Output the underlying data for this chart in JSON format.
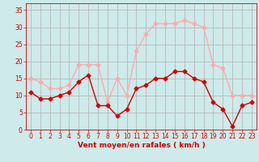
{
  "x": [
    0,
    1,
    2,
    3,
    4,
    5,
    6,
    7,
    8,
    9,
    10,
    11,
    12,
    13,
    14,
    15,
    16,
    17,
    18,
    19,
    20,
    21,
    22,
    23
  ],
  "wind_avg": [
    11,
    9,
    9,
    10,
    11,
    14,
    16,
    7,
    7,
    4,
    6,
    12,
    13,
    15,
    15,
    17,
    17,
    15,
    14,
    8,
    6,
    1,
    7,
    8
  ],
  "wind_gust": [
    15,
    14,
    12,
    12,
    13,
    19,
    19,
    19,
    8,
    15,
    10,
    23,
    28,
    31,
    31,
    31,
    32,
    31,
    30,
    19,
    18,
    10,
    10,
    10
  ],
  "avg_color": "#cc0000",
  "gust_color": "#ffaaaa",
  "bg_color": "#ceeaea",
  "grid_color": "#b0b0b0",
  "axis_color": "#cc0000",
  "xlabel": "Vent moyen/en rafales ( km/h )",
  "ylim": [
    0,
    37
  ],
  "yticks": [
    0,
    5,
    10,
    15,
    20,
    25,
    30,
    35
  ],
  "xlim": [
    -0.5,
    23.5
  ],
  "tick_fontsize": 5.5,
  "xlabel_fontsize": 6.5,
  "marker_size": 2.5,
  "line_width": 1.0
}
